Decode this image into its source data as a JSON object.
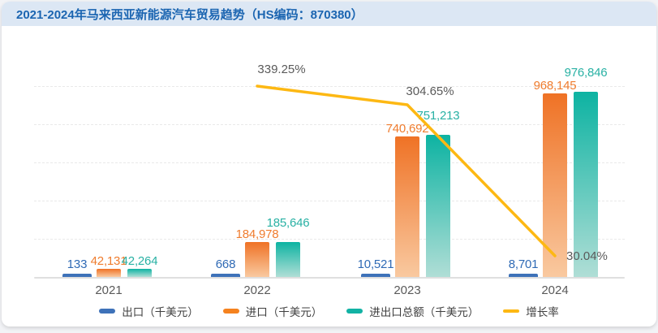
{
  "header": {
    "title": "2021-2024年马来西亚新能源汽车贸易趋势（HS编码：870380）"
  },
  "theme": {
    "header_bg": "#dce7f4",
    "header_text": "#1b65b1",
    "card_bg": "#ffffff",
    "page_bg": "#f2f3f6",
    "axis_line": "#dfdfdf",
    "grid_line": "#e9e9e9",
    "tick_text": "#595959",
    "percent_label_text": "#5a5a5a"
  },
  "chart_data": {
    "type": "bar",
    "subtype": "grouped bars with growth-rate line overlay",
    "title": "2021-2024年马来西亚新能源汽车贸易趋势（HS编码：870380）",
    "categories": [
      "2021",
      "2022",
      "2023",
      "2024"
    ],
    "ylim": [
      0,
      976846
    ],
    "grid": "horizontal-dashed",
    "legend_position": "bottom",
    "series": [
      {
        "name": "出口（千美元）",
        "type": "bar",
        "color": "#3e72b9",
        "label_color": "#2f6ab5",
        "values": [
          133,
          668,
          10521,
          8701
        ],
        "display": [
          "133",
          "668",
          "10,521",
          "8,701"
        ]
      },
      {
        "name": "进口（千美元）",
        "type": "bar",
        "color": "#f5821f",
        "color_top": "#ef7225",
        "color_bottom": "#f9c9a0",
        "label_color": "#ef7c2e",
        "values": [
          42131,
          184978,
          740692,
          968145
        ],
        "display": [
          "42,131",
          "184,978",
          "740,692",
          "968,145"
        ]
      },
      {
        "name": "进出口总额（千美元）",
        "type": "bar",
        "color": "#12b2a4",
        "color_top": "#0db3a2",
        "color_bottom": "#b0ded6",
        "label_color": "#29b1a4",
        "values": [
          42264,
          185646,
          751213,
          976846
        ],
        "display": [
          "42,264",
          "185,646",
          "751,213",
          "976,846"
        ]
      },
      {
        "name": "增长率",
        "type": "line",
        "color": "#fdb813",
        "values": [
          null,
          339.25,
          304.65,
          30.04
        ],
        "display": [
          "",
          "339.25%",
          "304.65%",
          "30.04%"
        ]
      }
    ]
  }
}
